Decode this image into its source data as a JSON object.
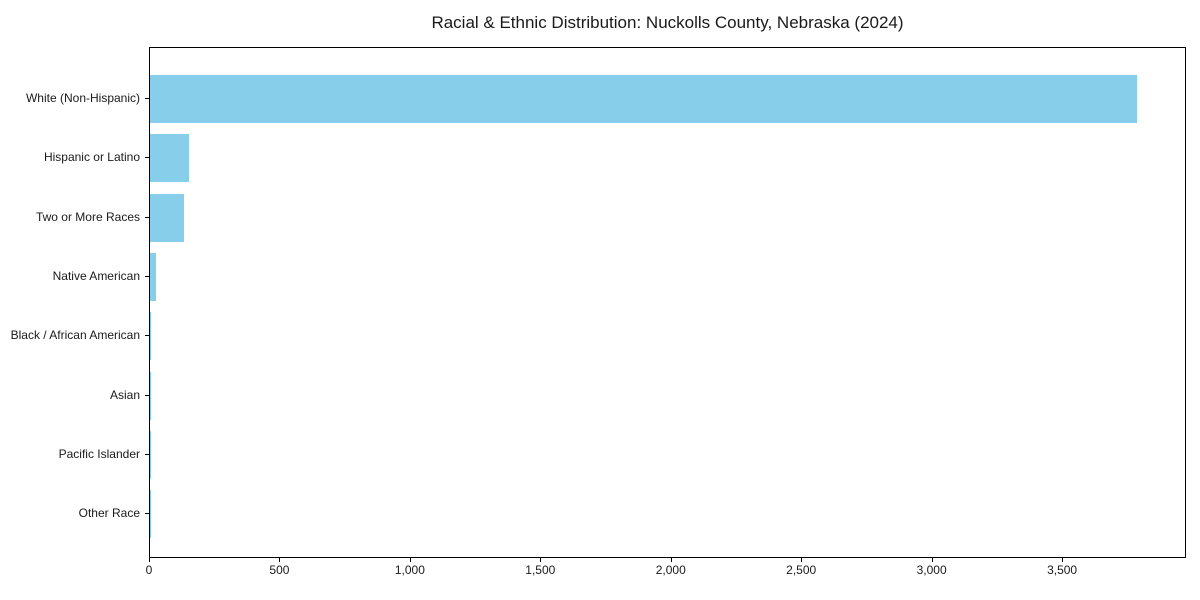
{
  "title": "Racial & Ethnic Distribution: Nuckolls County, Nebraska (2024)",
  "chart_data": {
    "type": "bar",
    "orientation": "horizontal",
    "title": "Racial & Ethnic Distribution: Nuckolls County, Nebraska (2024)",
    "categories": [
      "White (Non-Hispanic)",
      "Hispanic or Latino",
      "Two or More Races",
      "Native American",
      "Black / African American",
      "Asian",
      "Pacific Islander",
      "Other Race"
    ],
    "values": [
      3785,
      150,
      130,
      22,
      5,
      2,
      1,
      1
    ],
    "xlabel": "",
    "ylabel": "",
    "x_ticks": [
      0,
      500,
      1000,
      1500,
      2000,
      2500,
      3000,
      3500
    ],
    "x_tick_labels": [
      "0",
      "500",
      "1,000",
      "1,500",
      "2,000",
      "2,500",
      "3,000",
      "3,500"
    ],
    "xlim": [
      0,
      3975
    ],
    "bar_color": "#87CEEB",
    "frame_color": "#000000",
    "text_color": "#1a1a1a",
    "grid": false,
    "legend": false,
    "bars_sorted": "descending"
  }
}
